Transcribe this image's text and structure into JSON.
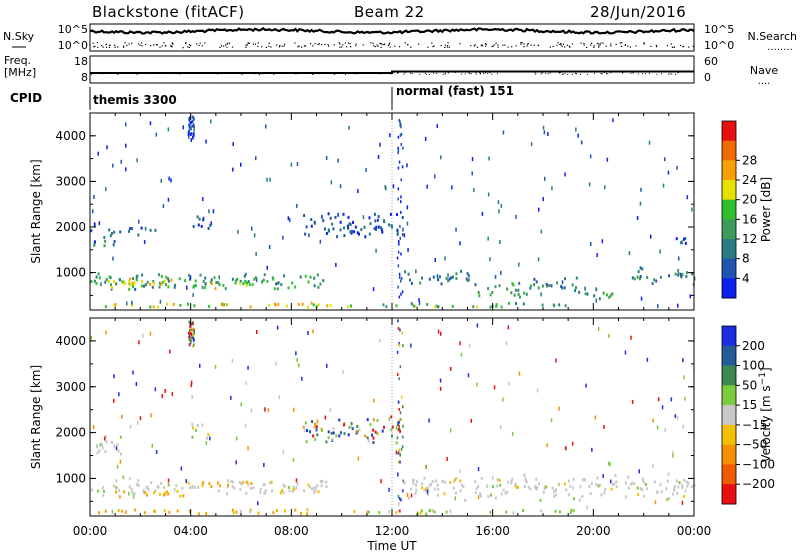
{
  "header": {
    "site": "Blackstone (fitACF)",
    "beam": "Beam 22",
    "date": "28/Jun/2016"
  },
  "noise_panel": {
    "left_label": "N.Sky",
    "right_label": "N.Search",
    "right_legend": "........",
    "y_ticks": [
      "10^5",
      "10^0"
    ]
  },
  "freq_panel": {
    "left_label_1": "Freq.",
    "left_label_2": "[MHz]",
    "right_label": "Nave",
    "right_legend": "....",
    "left_ticks": [
      "18",
      "8"
    ],
    "right_ticks": [
      "60",
      "0"
    ]
  },
  "cpid_panel": {
    "label": "CPID",
    "modes": [
      {
        "name": "themis 3300",
        "start": "00:00"
      },
      {
        "name": "normal (fast) 151",
        "start": "12:00"
      }
    ]
  },
  "chart_data": [
    {
      "type": "heatmap",
      "variable": "power",
      "ylabel": "Slant Range [km]",
      "ylim": [
        180,
        4500
      ],
      "y_ticks": [
        1000,
        2000,
        3000,
        4000
      ],
      "xlim_hours": [
        0,
        24
      ],
      "colorbar_label": "Power [dB]",
      "colorbar_ticks": [
        "4",
        "8",
        "12",
        "16",
        "20",
        "24",
        "28"
      ],
      "colorbar_colors": [
        "#0b22ee",
        "#1f55b0",
        "#2a7a86",
        "#3c9a5a",
        "#2fbf2f",
        "#e8e000",
        "#f7a000",
        "#f26a00",
        "#e81010"
      ],
      "echo_regions": [
        {
          "t": [
            0.0,
            9.4
          ],
          "r": [
            600,
            1000
          ],
          "level": 12
        },
        {
          "t": [
            0.5,
            3.5
          ],
          "r": [
            620,
            880
          ],
          "level": 20
        },
        {
          "t": [
            4.2,
            6.5
          ],
          "r": [
            620,
            900
          ],
          "level": 18
        },
        {
          "t": [
            0.0,
            1.2
          ],
          "r": [
            1500,
            1950
          ],
          "level": 8
        },
        {
          "t": [
            1.5,
            2.6
          ],
          "r": [
            1800,
            2050
          ],
          "level": 6
        },
        {
          "t": [
            4.0,
            4.8
          ],
          "r": [
            1850,
            2250
          ],
          "level": 6
        },
        {
          "t": [
            8.4,
            12.4
          ],
          "r": [
            1700,
            2350
          ],
          "level": 6
        },
        {
          "t": [
            12.4,
            15.4
          ],
          "r": [
            700,
            1050
          ],
          "level": 8
        },
        {
          "t": [
            15.4,
            17.5
          ],
          "r": [
            400,
            800
          ],
          "level": 14
        },
        {
          "t": [
            17.5,
            19.4
          ],
          "r": [
            500,
            900
          ],
          "level": 10
        },
        {
          "t": [
            19.6,
            20.8
          ],
          "r": [
            350,
            700
          ],
          "level": 12
        },
        {
          "t": [
            21.5,
            24.0
          ],
          "r": [
            700,
            1100
          ],
          "level": 10
        },
        {
          "t": [
            23.0,
            23.8
          ],
          "r": [
            1550,
            1800
          ],
          "level": 6
        },
        {
          "t": [
            0.0,
            10.5
          ],
          "r": [
            200,
            330
          ],
          "level": 20
        },
        {
          "t": [
            10.5,
            19.2
          ],
          "r": [
            200,
            320
          ],
          "level": 14
        }
      ]
    },
    {
      "type": "heatmap",
      "variable": "velocity",
      "ylabel": "Slant Range [km]",
      "ylim": [
        180,
        4500
      ],
      "y_ticks": [
        1000,
        2000,
        3000,
        4000
      ],
      "xlim_hours": [
        0,
        24
      ],
      "colorbar_label": "Velocity [m s^-1]",
      "colorbar_ticks": [
        "200",
        "100",
        "50",
        "15",
        "-15",
        "-50",
        "-100",
        "-200"
      ],
      "colorbar_colors": [
        "#1a2ee6",
        "#245c9a",
        "#3c8a50",
        "#7ccb3c",
        "#c8c8c8",
        "#f2c000",
        "#f59000",
        "#f25a00",
        "#e81010"
      ],
      "echo_regions": [
        {
          "t": [
            0.0,
            9.4
          ],
          "r": [
            600,
            1000
          ],
          "class": "ground"
        },
        {
          "t": [
            1.0,
            4.0
          ],
          "r": [
            560,
            760
          ],
          "class": "neg50"
        },
        {
          "t": [
            4.2,
            6.5
          ],
          "r": [
            780,
            980
          ],
          "class": "neg50"
        },
        {
          "t": [
            0.0,
            1.2
          ],
          "r": [
            1500,
            1950
          ],
          "class": "ground"
        },
        {
          "t": [
            4.0,
            4.8
          ],
          "r": [
            1850,
            2250
          ],
          "class": "ground"
        },
        {
          "t": [
            8.4,
            12.4
          ],
          "r": [
            1700,
            2350
          ],
          "class": "mixed"
        },
        {
          "t": [
            12.4,
            24.0
          ],
          "r": [
            500,
            1100
          ],
          "class": "ground"
        },
        {
          "t": [
            0.0,
            11.0
          ],
          "r": [
            200,
            320
          ],
          "class": "neg50"
        },
        {
          "t": [
            11.0,
            19.2
          ],
          "r": [
            200,
            320
          ],
          "class": "pos50"
        }
      ]
    }
  ],
  "x_axis": {
    "label": "Time UT",
    "ticks": [
      "00:00",
      "04:00",
      "08:00",
      "12:00",
      "16:00",
      "20:00",
      "00:00"
    ]
  }
}
